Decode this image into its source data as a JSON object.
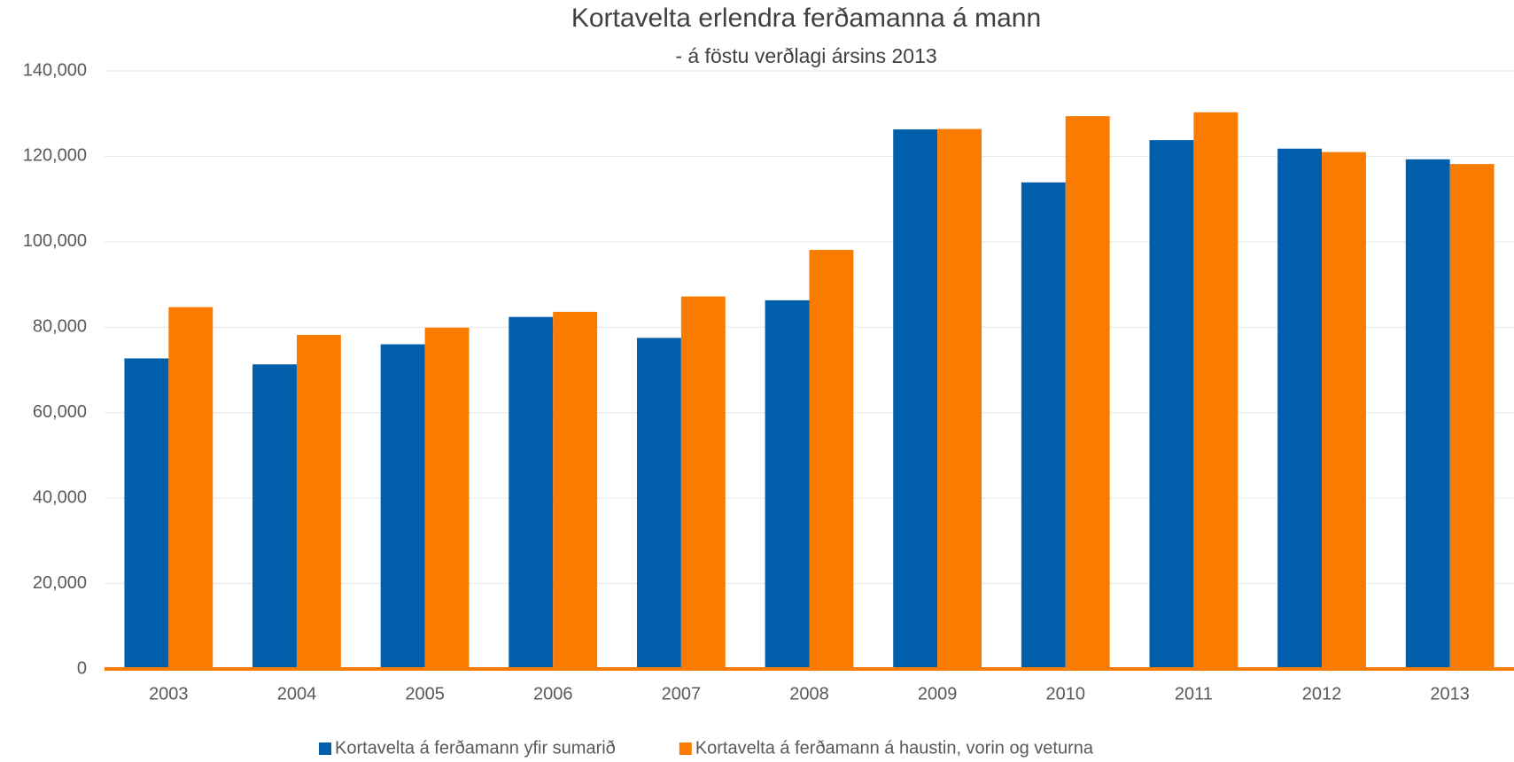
{
  "chart_data": {
    "type": "bar",
    "title": "Kortavelta erlendra ferðamanna á mann",
    "subtitle": "- á föstu verðlagi ársins 2013",
    "categories": [
      "2003",
      "2004",
      "2005",
      "2006",
      "2007",
      "2008",
      "2009",
      "2010",
      "2011",
      "2012",
      "2013"
    ],
    "series": [
      {
        "name": "Kortavelta á ferðamann yfir sumarið",
        "color": "#005eab",
        "values": [
          72700,
          71300,
          76000,
          82400,
          77500,
          86300,
          126300,
          113900,
          123800,
          121800,
          119300
        ]
      },
      {
        "name": "Kortavelta á ferðamann á haustin, vorin og veturna",
        "color": "#f97b00",
        "values": [
          84700,
          78200,
          79900,
          83600,
          87200,
          98100,
          126400,
          129400,
          130300,
          121000,
          118200
        ]
      }
    ],
    "ylim": [
      0,
      140000
    ],
    "yticks": [
      0,
      {
        "value": 20000,
        "label": "20,000"
      },
      {
        "value": 40000,
        "label": "40,000"
      },
      {
        "value": 60000,
        "label": "60,000"
      },
      {
        "value": 80000,
        "label": "80,000"
      },
      {
        "value": 100000,
        "label": "100,000"
      },
      {
        "value": 120000,
        "label": "120,000"
      },
      {
        "value": 140000,
        "label": "140,000"
      }
    ],
    "grid": true,
    "legend": "bottom"
  }
}
